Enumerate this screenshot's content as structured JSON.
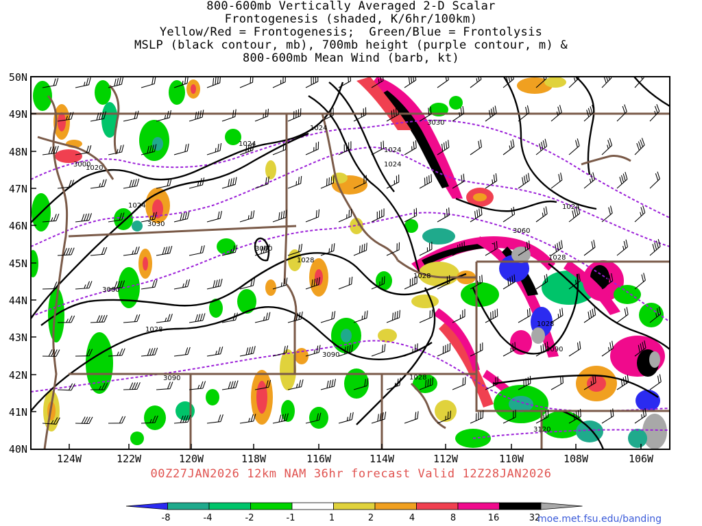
{
  "title_lines": [
    "800-600mb Vertically Averaged 2-D Scalar",
    "Frontogenesis (shaded, K/6hr/100km)",
    "Yellow/Red = Frontogenesis;  Green/Blue = Frontolysis",
    "MSLP (black contour, mb), 700mb height (purple contour, m) &",
    "800-600mb Mean Wind (barb, kt)"
  ],
  "valid_line": "00Z27JAN2026 12km NAM 36hr forecast Valid 12Z28JAN2026",
  "credit": "moe.met.fsu.edu/banding",
  "lat_labels": [
    "50N",
    "49N",
    "48N",
    "47N",
    "46N",
    "45N",
    "44N",
    "43N",
    "42N",
    "41N",
    "40N"
  ],
  "lon_labels": [
    "124W",
    "122W",
    "120W",
    "118W",
    "116W",
    "114W",
    "112W",
    "110W",
    "108W",
    "106W"
  ],
  "mslp_labels": [
    "1024",
    "1024",
    "1024",
    "1024",
    "1024",
    "1020",
    "1024",
    "1028",
    "1028",
    "1028",
    "1028",
    "1028",
    "1028"
  ],
  "height_labels": [
    "3030",
    "3000",
    "3030",
    "3060",
    "3060",
    "3060",
    "3090",
    "3090",
    "3090",
    "3120"
  ],
  "colorbar": {
    "labels": [
      "-8",
      "-4",
      "-2",
      "-1",
      "1",
      "2",
      "4",
      "8",
      "16",
      "32"
    ],
    "colors": [
      "#2b2bf0",
      "#1faa8c",
      "#00c46a",
      "#00d400",
      "#ffffff",
      "#e0d23c",
      "#f0a020",
      "#f04050",
      "#f00a8c",
      "#000000",
      "#a8a8a8"
    ]
  },
  "colors": {
    "mslp": "#000000",
    "height": "#9b1fd8",
    "border": "#7a5a48",
    "valid_text": "#e0524f"
  }
}
